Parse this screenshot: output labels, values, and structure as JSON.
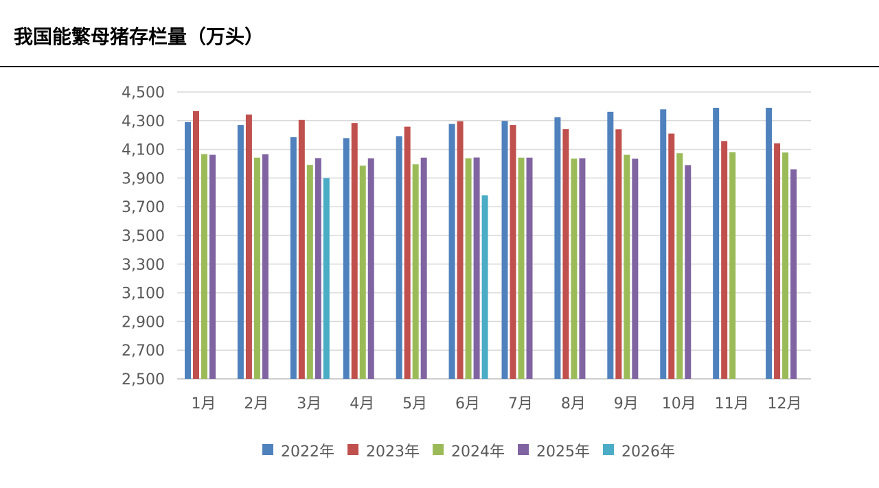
{
  "page": {
    "title": "我国能繁母猪存栏量（万头）"
  },
  "chart_data": {
    "type": "bar",
    "title": "",
    "xlabel": "",
    "ylabel": "",
    "categories": [
      "1月",
      "2月",
      "3月",
      "4月",
      "5月",
      "6月",
      "7月",
      "8月",
      "9月",
      "10月",
      "11月",
      "12月"
    ],
    "ylim": [
      2500,
      4500
    ],
    "yticks": [
      2500,
      2700,
      2900,
      3100,
      3300,
      3500,
      3700,
      3900,
      4100,
      4300,
      4500
    ],
    "ytick_labels": [
      "2,500",
      "2,700",
      "2,900",
      "3,100",
      "3,300",
      "3,500",
      "3,700",
      "3,900",
      "4,100",
      "4,300",
      "4,500"
    ],
    "grid": true,
    "legend_position": "bottom",
    "series": [
      {
        "name": "2022年",
        "color": "#4F81BD",
        "values": [
          4290,
          4270,
          4185,
          4178,
          4192,
          4277,
          4298,
          4324,
          4362,
          4379,
          4390,
          4390
        ]
      },
      {
        "name": "2023年",
        "color": "#C0504D",
        "values": [
          4367,
          4343,
          4305,
          4284,
          4258,
          4296,
          4270,
          4241,
          4240,
          4210,
          4158,
          4142
        ]
      },
      {
        "name": "2024年",
        "color": "#9BBB59",
        "values": [
          4067,
          4042,
          3992,
          3986,
          3996,
          4038,
          4042,
          4036,
          4062,
          4073,
          4080,
          4078
        ]
      },
      {
        "name": "2025年",
        "color": "#8064A2",
        "values": [
          4062,
          4066,
          4039,
          4038,
          4042,
          4043,
          4042,
          4038,
          4035,
          3990,
          null,
          3961
        ]
      },
      {
        "name": "2026年",
        "color": "#4BACC6",
        "values": [
          null,
          null,
          3900,
          null,
          null,
          3780,
          null,
          null,
          null,
          null,
          null,
          null
        ]
      }
    ]
  }
}
